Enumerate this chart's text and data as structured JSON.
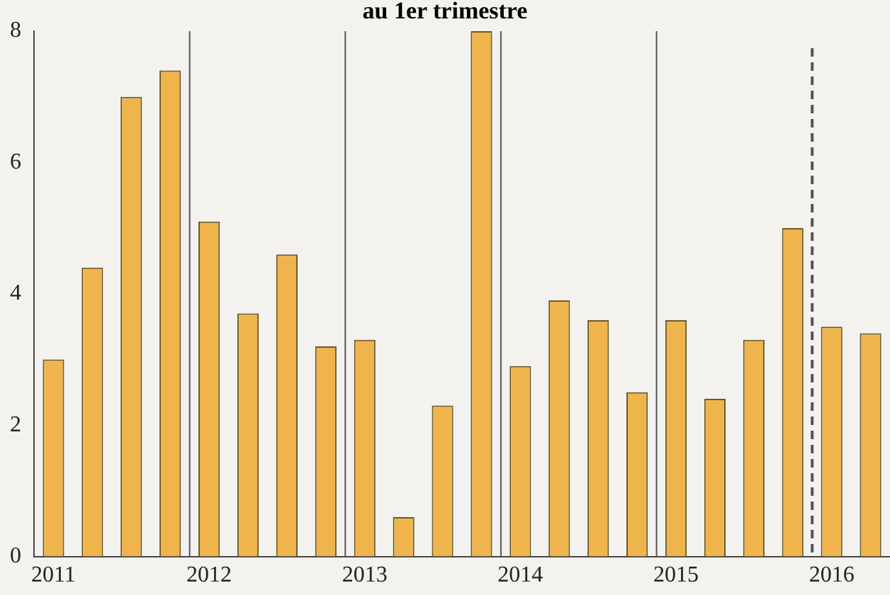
{
  "chart_data": {
    "type": "bar",
    "title": "au 1er trimestre",
    "categories": [
      "2011",
      null,
      null,
      null,
      "2012",
      null,
      null,
      null,
      "2013",
      null,
      null,
      null,
      "2014",
      null,
      null,
      null,
      "2015",
      null,
      null,
      null,
      "2016",
      null
    ],
    "values": [
      3.0,
      4.4,
      7.0,
      7.4,
      5.1,
      3.7,
      4.6,
      3.2,
      3.3,
      0.6,
      2.3,
      8.0,
      2.9,
      3.9,
      3.6,
      2.5,
      3.6,
      2.4,
      3.3,
      5.0,
      3.5,
      3.4
    ],
    "color": "#efb54c",
    "ylim": [
      0,
      8
    ],
    "yticks": [
      0,
      2,
      4,
      6,
      8
    ],
    "grid": "x",
    "ref_lines": [
      {
        "axis": "x",
        "value": "2016",
        "line_style": "dashed"
      }
    ]
  }
}
